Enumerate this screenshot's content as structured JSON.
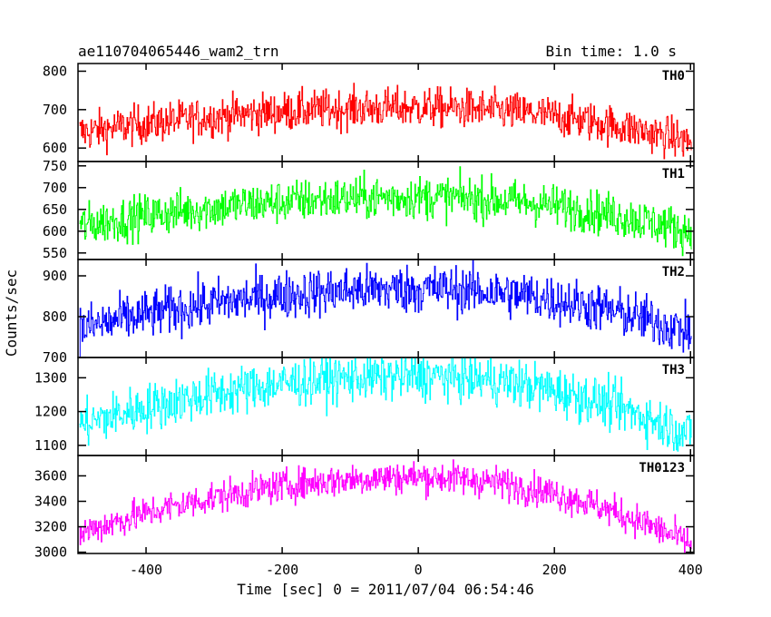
{
  "header": {
    "title": "ae110704065446_wam2_trn",
    "bin_time": "Bin time: 1.0 s"
  },
  "chart_data": {
    "type": "line",
    "xlabel": "Time [sec] 0 = 2011/07/04 06:54:46",
    "ylabel": "Counts/sec",
    "xlim": [
      -500,
      405
    ],
    "xticks": [
      -400,
      -200,
      0,
      200,
      400
    ],
    "x_start": -498,
    "x_end": 401,
    "bin_seconds": 1,
    "panels": [
      {
        "name": "TH0",
        "color": "#ff0000",
        "ylim": [
          565,
          820
        ],
        "yticks": [
          600,
          700,
          800
        ],
        "center": 705,
        "edge_left": 640,
        "edge_right": 615,
        "noise": 26
      },
      {
        "name": "TH1",
        "color": "#00ff00",
        "ylim": [
          535,
          760
        ],
        "yticks": [
          550,
          600,
          650,
          700,
          750
        ],
        "center": 678,
        "edge_left": 612,
        "edge_right": 598,
        "noise": 25
      },
      {
        "name": "TH2",
        "color": "#0000ff",
        "ylim": [
          700,
          940
        ],
        "yticks": [
          700,
          800,
          900
        ],
        "center": 868,
        "edge_left": 770,
        "edge_right": 760,
        "noise": 30
      },
      {
        "name": "TH3",
        "color": "#00ffff",
        "ylim": [
          1070,
          1360
        ],
        "yticks": [
          1100,
          1200,
          1300
        ],
        "center": 1305,
        "edge_left": 1160,
        "edge_right": 1130,
        "noise": 36
      },
      {
        "name": "TH0123",
        "color": "#ff00ff",
        "ylim": [
          2990,
          3760
        ],
        "yticks": [
          3000,
          3200,
          3400,
          3600
        ],
        "center": 3590,
        "edge_left": 3150,
        "edge_right": 3060,
        "noise": 65
      }
    ]
  }
}
